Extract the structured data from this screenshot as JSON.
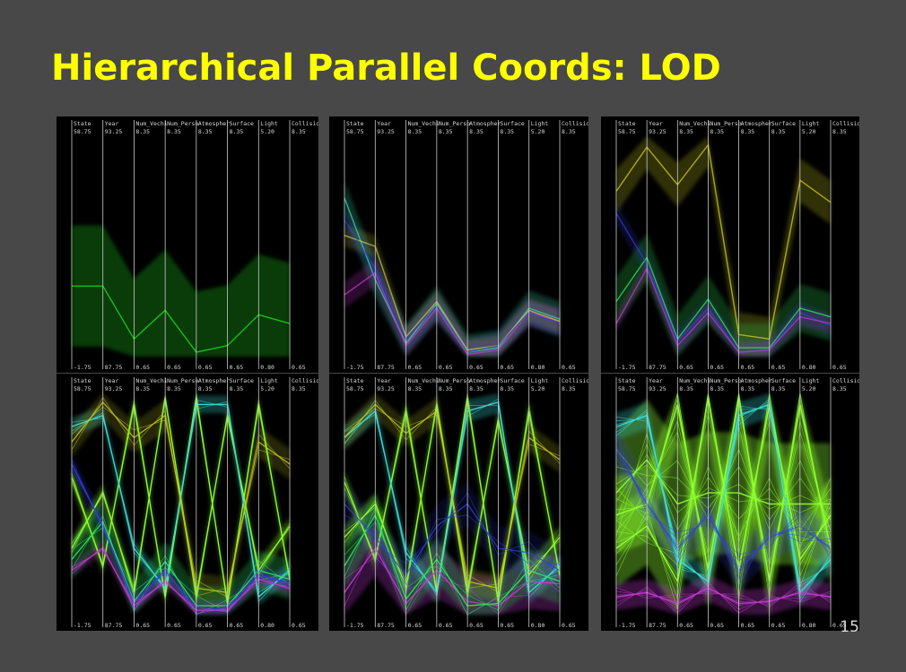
{
  "slide": {
    "title": "Hierarchical Parallel Coords: LOD",
    "page_number": "15"
  },
  "chart_data": {
    "type": "parallel-coordinates",
    "panel_count": 6,
    "axes": [
      {
        "name": "State",
        "max": "58.75",
        "min": "-1.75"
      },
      {
        "name": "Year",
        "max": "93.25",
        "min": "87.75"
      },
      {
        "name": "Num_Vechi",
        "max": "8.35",
        "min": "0.65"
      },
      {
        "name": "Num_Perso",
        "max": "8.35",
        "min": "0.65"
      },
      {
        "name": "Atmospher",
        "max": "8.35",
        "min": "0.65"
      },
      {
        "name": "Surface",
        "max": "8.35",
        "min": "0.65"
      },
      {
        "name": "Light",
        "max": "5.20",
        "min": "0.80"
      },
      {
        "name": "Collision",
        "max": "8.35",
        "min": "0.65"
      }
    ],
    "panels": [
      {
        "level": 1,
        "clusters": [
          {
            "color": "#1fc81f",
            "values": [
              0.32,
              0.32,
              0.08,
              0.21,
              0.02,
              0.05,
              0.19,
              0.15
            ],
            "band": 0.55,
            "opacity": 0.55
          }
        ]
      },
      {
        "level": 2,
        "clusters": [
          {
            "color": "#38d0a0",
            "values": [
              0.72,
              0.35,
              0.06,
              0.24,
              0.02,
              0.04,
              0.22,
              0.17
            ],
            "band": 0.16,
            "opacity": 0.45
          },
          {
            "color": "#c23bd2",
            "values": [
              0.28,
              0.38,
              0.05,
              0.22,
              0.01,
              0.03,
              0.2,
              0.16
            ],
            "band": 0.12,
            "opacity": 0.4
          },
          {
            "color": "#d1d142",
            "values": [
              0.55,
              0.5,
              0.09,
              0.25,
              0.03,
              0.05,
              0.21,
              0.16
            ],
            "band": 0.1,
            "opacity": 0.35
          },
          {
            "color": "#3340d8",
            "values": [
              0.62,
              0.4,
              0.08,
              0.23,
              0.02,
              0.05,
              0.2,
              0.15
            ],
            "band": 0.12,
            "opacity": 0.3
          }
        ]
      },
      {
        "level": 3,
        "clusters": [
          {
            "color": "#c8c81e",
            "values": [
              0.75,
              0.95,
              0.78,
              0.96,
              0.1,
              0.08,
              0.8,
              0.7
            ],
            "band": 0.2,
            "opacity": 0.45
          },
          {
            "color": "#2fe860",
            "values": [
              0.25,
              0.45,
              0.08,
              0.26,
              0.04,
              0.04,
              0.22,
              0.18
            ],
            "band": 0.22,
            "opacity": 0.4
          },
          {
            "color": "#3340d8",
            "values": [
              0.65,
              0.42,
              0.07,
              0.22,
              0.02,
              0.03,
              0.2,
              0.14
            ],
            "band": 0.1,
            "opacity": 0.35
          },
          {
            "color": "#c23bd2",
            "values": [
              0.15,
              0.4,
              0.05,
              0.2,
              0.02,
              0.03,
              0.18,
              0.15
            ],
            "band": 0.08,
            "opacity": 0.35
          }
        ]
      },
      {
        "level": 4,
        "clusters": [
          {
            "color": "#8fff30",
            "values": [
              0.62,
              0.22,
              0.95,
              0.08,
              0.98,
              0.05,
              0.95,
              0.16
            ],
            "band": 0.08,
            "opacity": 0.55
          },
          {
            "color": "#8fff30",
            "values": [
              0.3,
              0.55,
              0.1,
              0.98,
              0.08,
              0.9,
              0.2,
              0.4
            ],
            "band": 0.08,
            "opacity": 0.55
          },
          {
            "color": "#3ee0d8",
            "values": [
              0.85,
              0.9,
              0.3,
              0.12,
              0.95,
              0.95,
              0.08,
              0.2
            ],
            "band": 0.08,
            "opacity": 0.5
          },
          {
            "color": "#c8c81e",
            "values": [
              0.78,
              0.96,
              0.8,
              0.9,
              0.12,
              0.1,
              0.78,
              0.68
            ],
            "band": 0.14,
            "opacity": 0.35
          },
          {
            "color": "#2fe860",
            "values": [
              0.25,
              0.42,
              0.06,
              0.24,
              0.04,
              0.04,
              0.2,
              0.16
            ],
            "band": 0.18,
            "opacity": 0.45
          },
          {
            "color": "#3340d8",
            "values": [
              0.68,
              0.4,
              0.05,
              0.2,
              0.02,
              0.03,
              0.18,
              0.14
            ],
            "band": 0.08,
            "opacity": 0.45
          },
          {
            "color": "#c23bd2",
            "values": [
              0.2,
              0.3,
              0.04,
              0.15,
              0.02,
              0.02,
              0.16,
              0.12
            ],
            "band": 0.06,
            "opacity": 0.4
          }
        ]
      },
      {
        "level": 5,
        "clusters": [
          {
            "color": "#8fff30",
            "values": [
              0.6,
              0.25,
              0.92,
              0.1,
              0.98,
              0.06,
              0.92,
              0.18
            ],
            "band": 0.1,
            "opacity": 0.55
          },
          {
            "color": "#8fff30",
            "values": [
              0.35,
              0.5,
              0.12,
              0.95,
              0.1,
              0.88,
              0.18,
              0.35
            ],
            "band": 0.1,
            "opacity": 0.55
          },
          {
            "color": "#3ee0d8",
            "values": [
              0.8,
              0.92,
              0.28,
              0.1,
              0.92,
              0.96,
              0.1,
              0.22
            ],
            "band": 0.1,
            "opacity": 0.5
          },
          {
            "color": "#c23bd2",
            "values": [
              0.1,
              0.3,
              0.05,
              0.2,
              0.06,
              0.04,
              0.15,
              0.14
            ],
            "band": 0.25,
            "opacity": 0.5
          },
          {
            "color": "#c8c81e",
            "values": [
              0.8,
              0.95,
              0.82,
              0.92,
              0.15,
              0.12,
              0.8,
              0.7
            ],
            "band": 0.12,
            "opacity": 0.35
          },
          {
            "color": "#2fe860",
            "values": [
              0.22,
              0.45,
              0.07,
              0.25,
              0.04,
              0.05,
              0.2,
              0.15
            ],
            "band": 0.2,
            "opacity": 0.45
          },
          {
            "color": "#3340d8",
            "values": [
              0.5,
              0.35,
              0.18,
              0.4,
              0.5,
              0.3,
              0.28,
              0.2
            ],
            "band": 0.2,
            "opacity": 0.25
          }
        ]
      },
      {
        "level": 6,
        "clusters": [
          {
            "color": "#8fff30",
            "values": [
              0.45,
              0.5,
              0.95,
              0.2,
              0.98,
              0.15,
              0.95,
              0.3
            ],
            "band": 0.35,
            "opacity": 0.65
          },
          {
            "color": "#8fff30",
            "values": [
              0.3,
              0.4,
              0.15,
              0.98,
              0.2,
              0.95,
              0.25,
              0.45
            ],
            "band": 0.35,
            "opacity": 0.65
          },
          {
            "color": "#8fff30",
            "values": [
              0.55,
              0.7,
              0.5,
              0.55,
              0.55,
              0.5,
              0.5,
              0.5
            ],
            "band": 0.55,
            "opacity": 0.6
          },
          {
            "color": "#3ee0d8",
            "values": [
              0.85,
              0.9,
              0.25,
              0.15,
              0.9,
              0.95,
              0.1,
              0.25
            ],
            "band": 0.12,
            "opacity": 0.5
          },
          {
            "color": "#c23bd2",
            "values": [
              0.08,
              0.1,
              0.05,
              0.12,
              0.05,
              0.06,
              0.1,
              0.08
            ],
            "band": 0.12,
            "opacity": 0.55
          },
          {
            "color": "#3340d8",
            "values": [
              0.75,
              0.5,
              0.3,
              0.45,
              0.2,
              0.35,
              0.4,
              0.3
            ],
            "band": 0.2,
            "opacity": 0.35
          }
        ]
      }
    ]
  }
}
